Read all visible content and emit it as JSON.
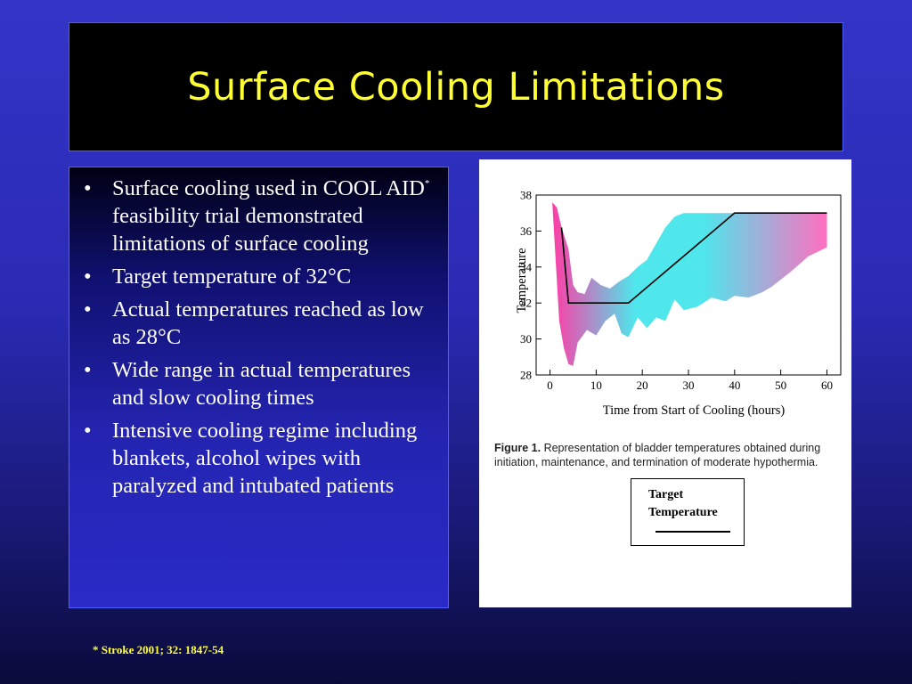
{
  "slide": {
    "title": "Surface Cooling Limitations",
    "bullets": [
      {
        "text_before": "Surface cooling used in COOL AID",
        "sup": "*",
        "text_after": " feasibility trial demonstrated limitations of surface cooling"
      },
      {
        "text_before": "Target temperature of 32°C"
      },
      {
        "text_before": "Actual temperatures reached as low as 28°C"
      },
      {
        "text_before": "Wide range in actual temperatures and slow cooling times"
      },
      {
        "text_before": "Intensive cooling regime including blankets, alcohol wipes with paralyzed and intubated patients"
      }
    ],
    "bullet_glyph": "•",
    "footnote": "*  Stroke 2001; 32: 1847-54"
  },
  "figure": {
    "caption_bold": "Figure 1.",
    "caption_text": " Representation of bladder temperatures obtained during initiation, maintenance, and termination of moderate hypothermia.",
    "legend_label": "Target Temperature"
  },
  "chart_data": {
    "type": "area",
    "xlabel": "Time from Start of Cooling (hours)",
    "ylabel": "Temperature",
    "xlim": [
      -3,
      63
    ],
    "ylim": [
      28,
      38
    ],
    "xticks": [
      0,
      10,
      20,
      30,
      40,
      50,
      60
    ],
    "yticks": [
      28,
      30,
      32,
      34,
      36,
      38
    ],
    "grid": false,
    "band_colors": [
      "#ff3ca6",
      "#4fe6ec",
      "#ff6fc0"
    ],
    "band_upper": [
      [
        0.5,
        37.6
      ],
      [
        1.5,
        37.3
      ],
      [
        2.5,
        36.2
      ],
      [
        4,
        35
      ],
      [
        5,
        33
      ],
      [
        6,
        32.6
      ],
      [
        7.5,
        32.5
      ],
      [
        9,
        33.4
      ],
      [
        11,
        33
      ],
      [
        13,
        32.8
      ],
      [
        15,
        33.2
      ],
      [
        17,
        33.5
      ],
      [
        19,
        34.0
      ],
      [
        21,
        34.4
      ],
      [
        23,
        35.3
      ],
      [
        25,
        36.2
      ],
      [
        27,
        36.8
      ],
      [
        29,
        37.0
      ],
      [
        40,
        37.0
      ],
      [
        60,
        37.0
      ]
    ],
    "band_lower": [
      [
        0.5,
        37.6
      ],
      [
        2,
        31.0
      ],
      [
        3,
        29.5
      ],
      [
        4,
        28.6
      ],
      [
        5,
        28.5
      ],
      [
        6,
        29.8
      ],
      [
        8,
        30.5
      ],
      [
        10,
        30.2
      ],
      [
        12,
        31.0
      ],
      [
        14,
        31.4
      ],
      [
        15.5,
        30.3
      ],
      [
        17,
        30.1
      ],
      [
        19,
        31.2
      ],
      [
        21,
        30.6
      ],
      [
        23,
        31.2
      ],
      [
        25,
        31.0
      ],
      [
        27,
        32.2
      ],
      [
        29,
        31.6
      ],
      [
        32,
        31.8
      ],
      [
        35,
        32.3
      ],
      [
        38,
        32.1
      ],
      [
        40,
        32.4
      ],
      [
        43,
        32.3
      ],
      [
        46,
        32.6
      ],
      [
        48,
        32.9
      ],
      [
        52,
        33.7
      ],
      [
        56,
        34.6
      ],
      [
        60,
        35.1
      ]
    ],
    "series": [
      {
        "name": "Target Temperature",
        "x": [
          2.5,
          4,
          17,
          40,
          60
        ],
        "y": [
          36.2,
          32,
          32,
          37,
          37
        ]
      }
    ]
  }
}
